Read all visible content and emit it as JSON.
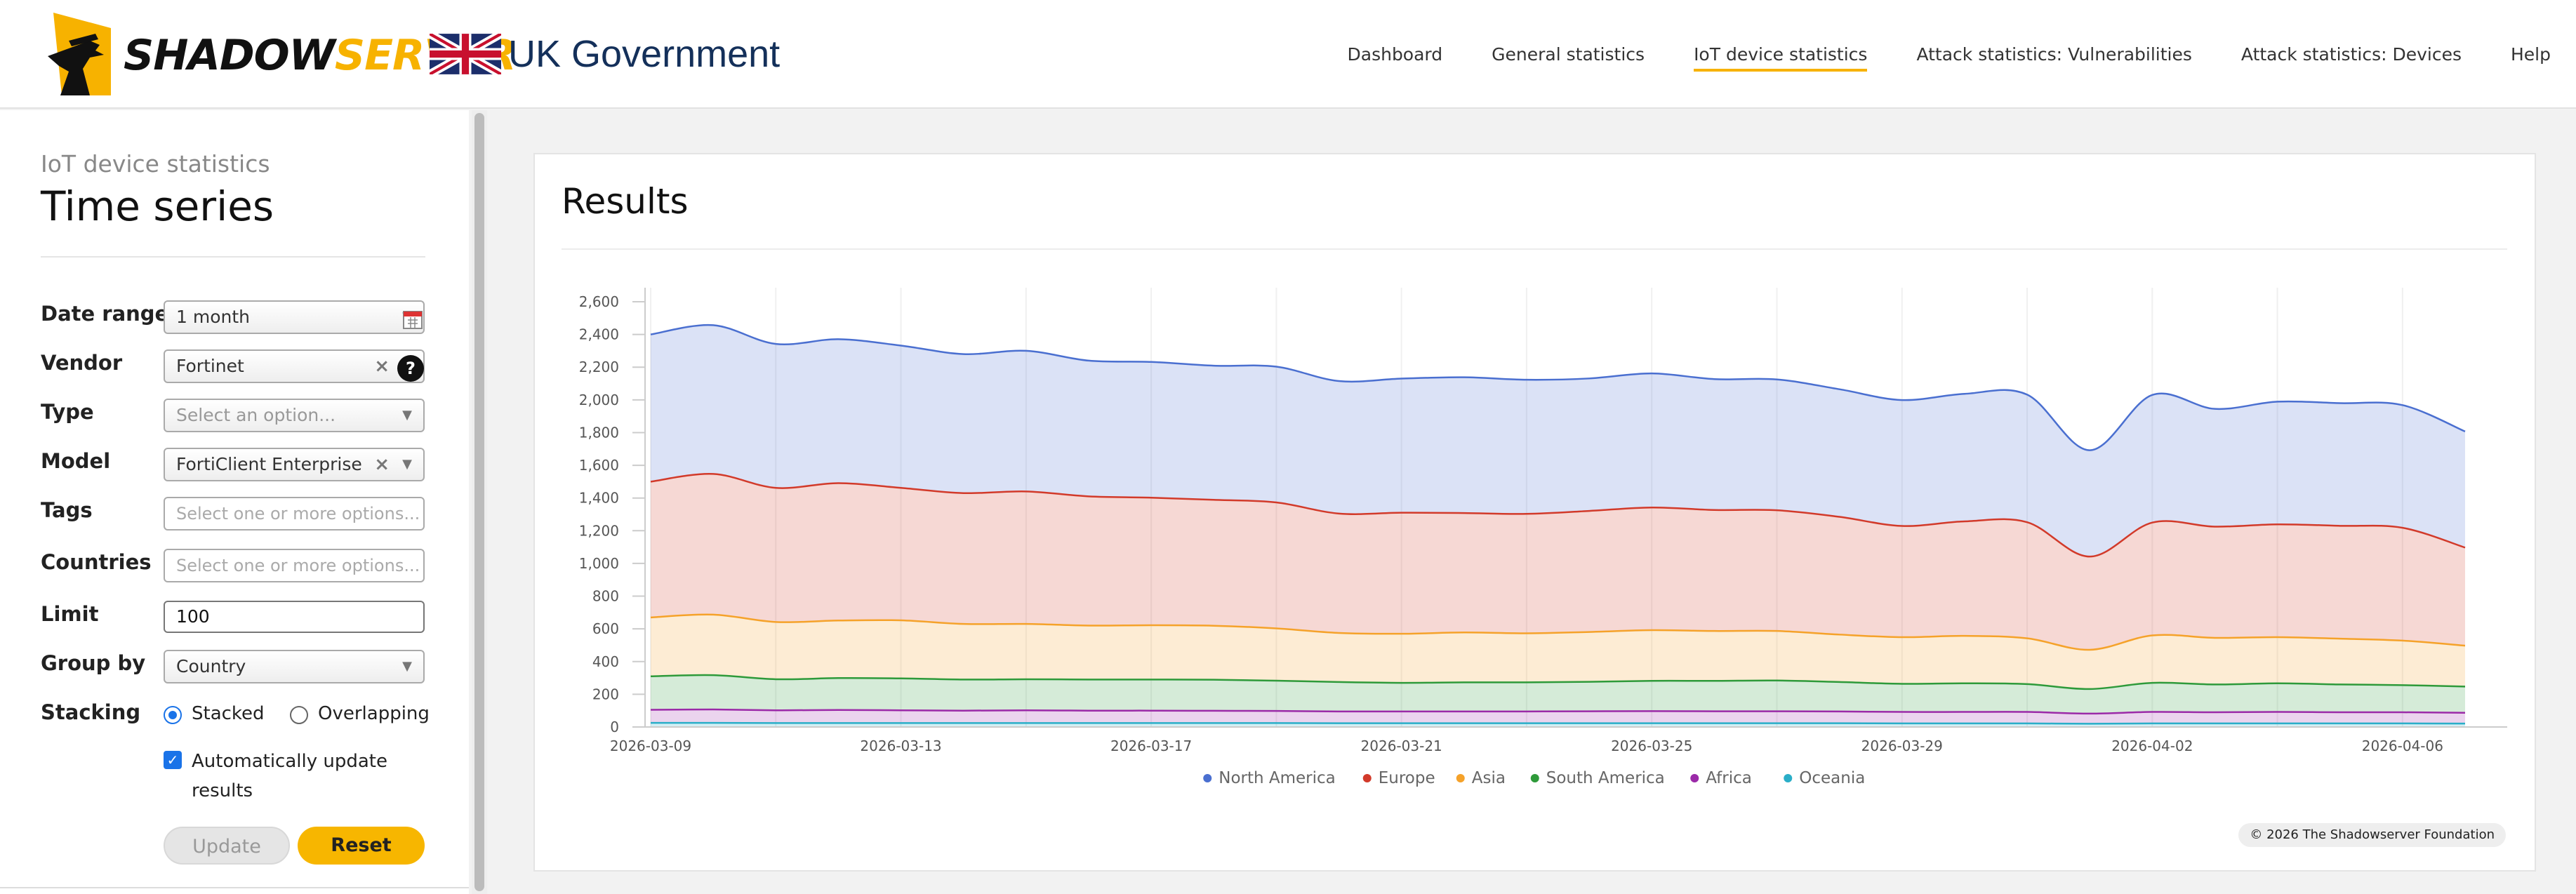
{
  "header": {
    "logo": {
      "part1": "SHADOW",
      "part2": "SERVER"
    },
    "gov_label": "UK Government",
    "nav": [
      {
        "label": "Dashboard",
        "active": false
      },
      {
        "label": "General statistics",
        "active": false
      },
      {
        "label": "IoT device statistics",
        "active": true
      },
      {
        "label": "Attack statistics: Vulnerabilities",
        "active": false
      },
      {
        "label": "Attack statistics: Devices",
        "active": false
      },
      {
        "label": "Help",
        "active": false
      }
    ]
  },
  "sidebar": {
    "subtitle": "IoT device statistics",
    "title": "Time series",
    "date_range": {
      "label": "Date range",
      "value": "1 month"
    },
    "vendor": {
      "label": "Vendor",
      "value": "Fortinet"
    },
    "type": {
      "label": "Type",
      "placeholder": "Select an option..."
    },
    "model": {
      "label": "Model",
      "value": "FortiClient Enterprise"
    },
    "tags": {
      "label": "Tags",
      "placeholder": "Select one or more options..."
    },
    "countries": {
      "label": "Countries",
      "placeholder": "Select one or more options..."
    },
    "limit": {
      "label": "Limit",
      "value": "100"
    },
    "group_by": {
      "label": "Group by",
      "value": "Country"
    },
    "stacking": {
      "label": "Stacking",
      "options": [
        "Stacked",
        "Overlapping"
      ],
      "selected": "Stacked"
    },
    "auto_update": {
      "label": "Automatically update results",
      "checked": true
    },
    "update_label": "Update",
    "reset_label": "Reset"
  },
  "results": {
    "title": "Results",
    "copyright": "© 2026 The Shadowserver Foundation"
  },
  "colors": {
    "North America": "#4a6fd0",
    "Europe": "#d23a2a",
    "Asia": "#f5a22a",
    "South America": "#2e9a3a",
    "Africa": "#9b2aa8",
    "Oceania": "#2aaec8"
  },
  "chart_data": {
    "type": "area",
    "stacked": true,
    "ylim": [
      0,
      2600
    ],
    "y_ticks": [
      "0",
      "200",
      "400",
      "600",
      "800",
      "1,000",
      "1,200",
      "1,400",
      "1,600",
      "1,800",
      "2,000",
      "2,200",
      "2,400",
      "2,600"
    ],
    "x_tick_labels": [
      "2026-03-09",
      "2026-03-13",
      "2026-03-17",
      "2026-03-21",
      "2026-03-25",
      "2026-03-29",
      "2026-04-02",
      "2026-04-06"
    ],
    "x": [
      "2026-03-09",
      "2026-03-10",
      "2026-03-11",
      "2026-03-12",
      "2026-03-13",
      "2026-03-14",
      "2026-03-15",
      "2026-03-16",
      "2026-03-17",
      "2026-03-18",
      "2026-03-19",
      "2026-03-20",
      "2026-03-21",
      "2026-03-22",
      "2026-03-23",
      "2026-03-24",
      "2026-03-25",
      "2026-03-26",
      "2026-03-27",
      "2026-03-28",
      "2026-03-29",
      "2026-03-30",
      "2026-03-31",
      "2026-04-01",
      "2026-04-02",
      "2026-04-03",
      "2026-04-04",
      "2026-04-05",
      "2026-04-06",
      "2026-04-07"
    ],
    "legend_position": "bottom",
    "series": [
      {
        "name": "Oceania",
        "values": [
          25,
          25,
          24,
          24,
          24,
          24,
          24,
          24,
          24,
          24,
          24,
          23,
          23,
          23,
          23,
          23,
          23,
          23,
          23,
          23,
          22,
          22,
          22,
          20,
          22,
          22,
          22,
          22,
          22,
          21
        ]
      },
      {
        "name": "Africa",
        "values": [
          80,
          82,
          78,
          80,
          78,
          76,
          78,
          76,
          76,
          75,
          74,
          72,
          72,
          72,
          72,
          73,
          74,
          73,
          73,
          72,
          70,
          70,
          70,
          62,
          70,
          68,
          70,
          68,
          68,
          66
        ]
      },
      {
        "name": "South America",
        "values": [
          205,
          210,
          190,
          195,
          195,
          190,
          190,
          190,
          190,
          190,
          185,
          180,
          175,
          178,
          178,
          180,
          185,
          186,
          188,
          180,
          172,
          175,
          170,
          150,
          178,
          170,
          175,
          170,
          166,
          160
        ]
      },
      {
        "name": "Asia",
        "values": [
          360,
          370,
          350,
          352,
          355,
          340,
          338,
          330,
          332,
          330,
          320,
          300,
          300,
          305,
          300,
          305,
          310,
          305,
          303,
          290,
          285,
          290,
          280,
          240,
          290,
          285,
          282,
          280,
          272,
          250
        ]
      },
      {
        "name": "Europe",
        "values": [
          830,
          860,
          820,
          840,
          810,
          800,
          810,
          790,
          780,
          770,
          770,
          730,
          740,
          730,
          730,
          740,
          750,
          740,
          738,
          720,
          680,
          700,
          710,
          570,
          690,
          680,
          690,
          690,
          690,
          600
        ]
      },
      {
        "name": "North America",
        "values": [
          900,
          910,
          880,
          880,
          870,
          850,
          860,
          830,
          830,
          820,
          830,
          810,
          820,
          830,
          820,
          810,
          820,
          800,
          800,
          780,
          770,
          780,
          780,
          650,
          780,
          720,
          750,
          750,
          750,
          710
        ]
      }
    ],
    "legend_order": [
      "North America",
      "Europe",
      "Asia",
      "South America",
      "Africa",
      "Oceania"
    ]
  }
}
